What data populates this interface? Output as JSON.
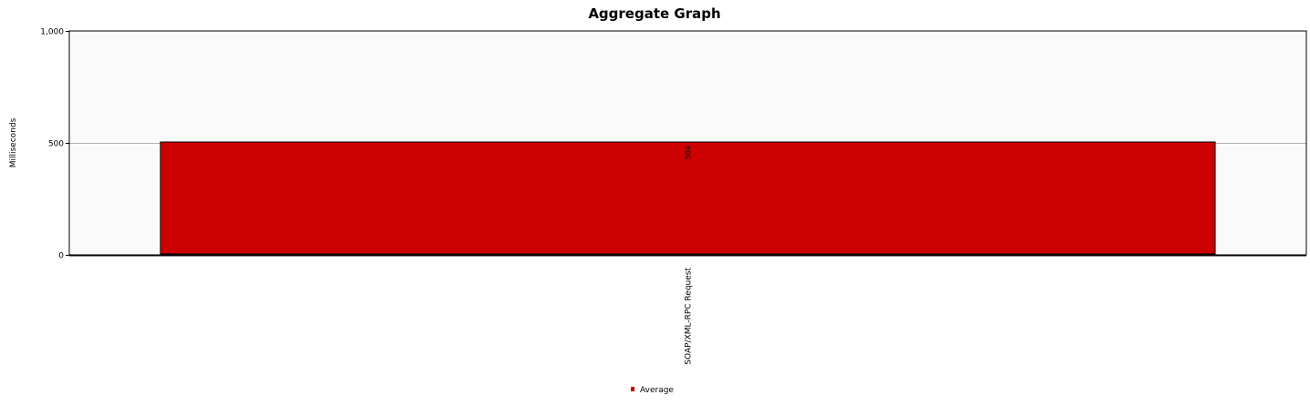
{
  "chart_data": {
    "type": "bar",
    "title": "Aggregate Graph",
    "ylabel": "Milliseconds",
    "xlabel": "",
    "categories": [
      "SOAP/XML-RPC Request"
    ],
    "series": [
      {
        "name": "Average",
        "values": [
          504
        ],
        "color": "#cc0000"
      }
    ],
    "ylim": [
      0,
      1000
    ],
    "yticks": [
      {
        "value": 0,
        "label": "0"
      },
      {
        "value": 500,
        "label": "500"
      },
      {
        "value": 1000,
        "label": "1,000"
      }
    ],
    "data_labels": [
      "504"
    ],
    "grid": true,
    "legend": "bottom",
    "plot_background": "#fafafa",
    "gridline_color": "#b0b0b0"
  }
}
